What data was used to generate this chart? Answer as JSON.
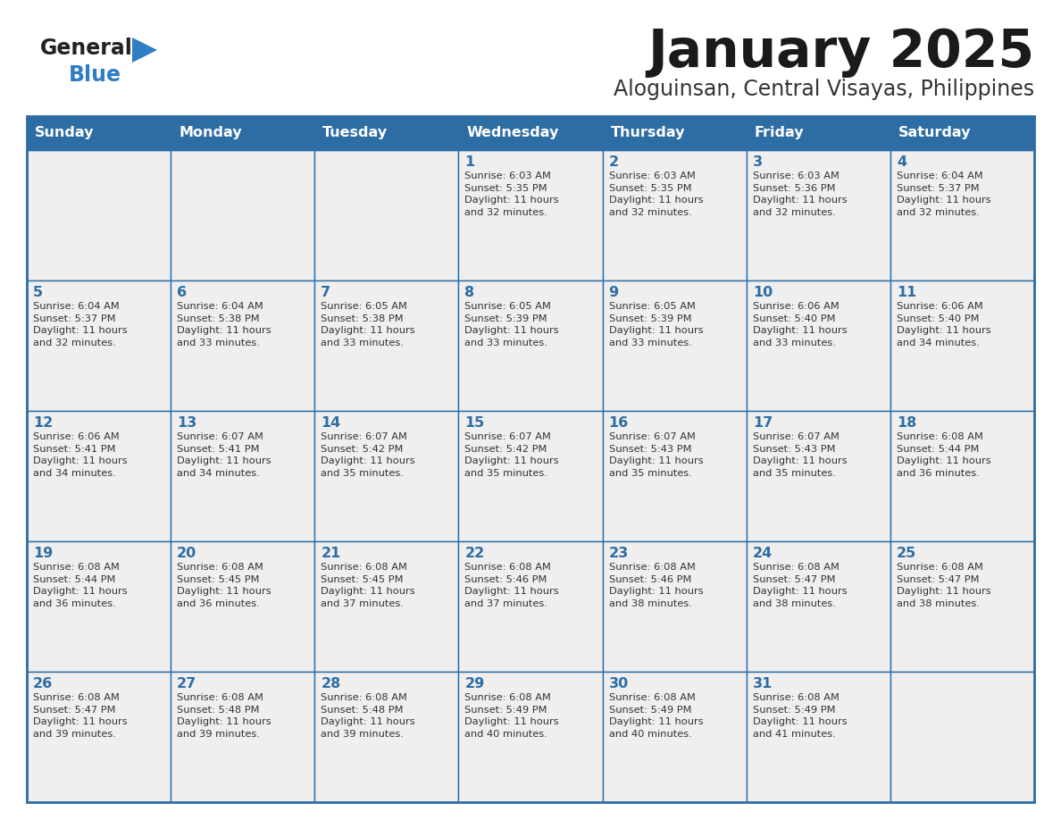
{
  "title": "January 2025",
  "subtitle": "Aloguinsan, Central Visayas, Philippines",
  "header_bg": "#2E6DA4",
  "header_text_color": "#FFFFFF",
  "cell_bg_light": "#EFEFEF",
  "border_color": "#2E6DA4",
  "day_number_color": "#2E6DA4",
  "cell_text_color": "#333333",
  "days_of_week": [
    "Sunday",
    "Monday",
    "Tuesday",
    "Wednesday",
    "Thursday",
    "Friday",
    "Saturday"
  ],
  "weeks": [
    [
      {
        "day": "",
        "info": ""
      },
      {
        "day": "",
        "info": ""
      },
      {
        "day": "",
        "info": ""
      },
      {
        "day": "1",
        "info": "Sunrise: 6:03 AM\nSunset: 5:35 PM\nDaylight: 11 hours\nand 32 minutes."
      },
      {
        "day": "2",
        "info": "Sunrise: 6:03 AM\nSunset: 5:35 PM\nDaylight: 11 hours\nand 32 minutes."
      },
      {
        "day": "3",
        "info": "Sunrise: 6:03 AM\nSunset: 5:36 PM\nDaylight: 11 hours\nand 32 minutes."
      },
      {
        "day": "4",
        "info": "Sunrise: 6:04 AM\nSunset: 5:37 PM\nDaylight: 11 hours\nand 32 minutes."
      }
    ],
    [
      {
        "day": "5",
        "info": "Sunrise: 6:04 AM\nSunset: 5:37 PM\nDaylight: 11 hours\nand 32 minutes."
      },
      {
        "day": "6",
        "info": "Sunrise: 6:04 AM\nSunset: 5:38 PM\nDaylight: 11 hours\nand 33 minutes."
      },
      {
        "day": "7",
        "info": "Sunrise: 6:05 AM\nSunset: 5:38 PM\nDaylight: 11 hours\nand 33 minutes."
      },
      {
        "day": "8",
        "info": "Sunrise: 6:05 AM\nSunset: 5:39 PM\nDaylight: 11 hours\nand 33 minutes."
      },
      {
        "day": "9",
        "info": "Sunrise: 6:05 AM\nSunset: 5:39 PM\nDaylight: 11 hours\nand 33 minutes."
      },
      {
        "day": "10",
        "info": "Sunrise: 6:06 AM\nSunset: 5:40 PM\nDaylight: 11 hours\nand 33 minutes."
      },
      {
        "day": "11",
        "info": "Sunrise: 6:06 AM\nSunset: 5:40 PM\nDaylight: 11 hours\nand 34 minutes."
      }
    ],
    [
      {
        "day": "12",
        "info": "Sunrise: 6:06 AM\nSunset: 5:41 PM\nDaylight: 11 hours\nand 34 minutes."
      },
      {
        "day": "13",
        "info": "Sunrise: 6:07 AM\nSunset: 5:41 PM\nDaylight: 11 hours\nand 34 minutes."
      },
      {
        "day": "14",
        "info": "Sunrise: 6:07 AM\nSunset: 5:42 PM\nDaylight: 11 hours\nand 35 minutes."
      },
      {
        "day": "15",
        "info": "Sunrise: 6:07 AM\nSunset: 5:42 PM\nDaylight: 11 hours\nand 35 minutes."
      },
      {
        "day": "16",
        "info": "Sunrise: 6:07 AM\nSunset: 5:43 PM\nDaylight: 11 hours\nand 35 minutes."
      },
      {
        "day": "17",
        "info": "Sunrise: 6:07 AM\nSunset: 5:43 PM\nDaylight: 11 hours\nand 35 minutes."
      },
      {
        "day": "18",
        "info": "Sunrise: 6:08 AM\nSunset: 5:44 PM\nDaylight: 11 hours\nand 36 minutes."
      }
    ],
    [
      {
        "day": "19",
        "info": "Sunrise: 6:08 AM\nSunset: 5:44 PM\nDaylight: 11 hours\nand 36 minutes."
      },
      {
        "day": "20",
        "info": "Sunrise: 6:08 AM\nSunset: 5:45 PM\nDaylight: 11 hours\nand 36 minutes."
      },
      {
        "day": "21",
        "info": "Sunrise: 6:08 AM\nSunset: 5:45 PM\nDaylight: 11 hours\nand 37 minutes."
      },
      {
        "day": "22",
        "info": "Sunrise: 6:08 AM\nSunset: 5:46 PM\nDaylight: 11 hours\nand 37 minutes."
      },
      {
        "day": "23",
        "info": "Sunrise: 6:08 AM\nSunset: 5:46 PM\nDaylight: 11 hours\nand 38 minutes."
      },
      {
        "day": "24",
        "info": "Sunrise: 6:08 AM\nSunset: 5:47 PM\nDaylight: 11 hours\nand 38 minutes."
      },
      {
        "day": "25",
        "info": "Sunrise: 6:08 AM\nSunset: 5:47 PM\nDaylight: 11 hours\nand 38 minutes."
      }
    ],
    [
      {
        "day": "26",
        "info": "Sunrise: 6:08 AM\nSunset: 5:47 PM\nDaylight: 11 hours\nand 39 minutes."
      },
      {
        "day": "27",
        "info": "Sunrise: 6:08 AM\nSunset: 5:48 PM\nDaylight: 11 hours\nand 39 minutes."
      },
      {
        "day": "28",
        "info": "Sunrise: 6:08 AM\nSunset: 5:48 PM\nDaylight: 11 hours\nand 39 minutes."
      },
      {
        "day": "29",
        "info": "Sunrise: 6:08 AM\nSunset: 5:49 PM\nDaylight: 11 hours\nand 40 minutes."
      },
      {
        "day": "30",
        "info": "Sunrise: 6:08 AM\nSunset: 5:49 PM\nDaylight: 11 hours\nand 40 minutes."
      },
      {
        "day": "31",
        "info": "Sunrise: 6:08 AM\nSunset: 5:49 PM\nDaylight: 11 hours\nand 41 minutes."
      },
      {
        "day": "",
        "info": ""
      }
    ]
  ],
  "logo_general_color": "#222222",
  "logo_blue_color": "#2E7DC5",
  "logo_triangle_color": "#2E7DC5"
}
